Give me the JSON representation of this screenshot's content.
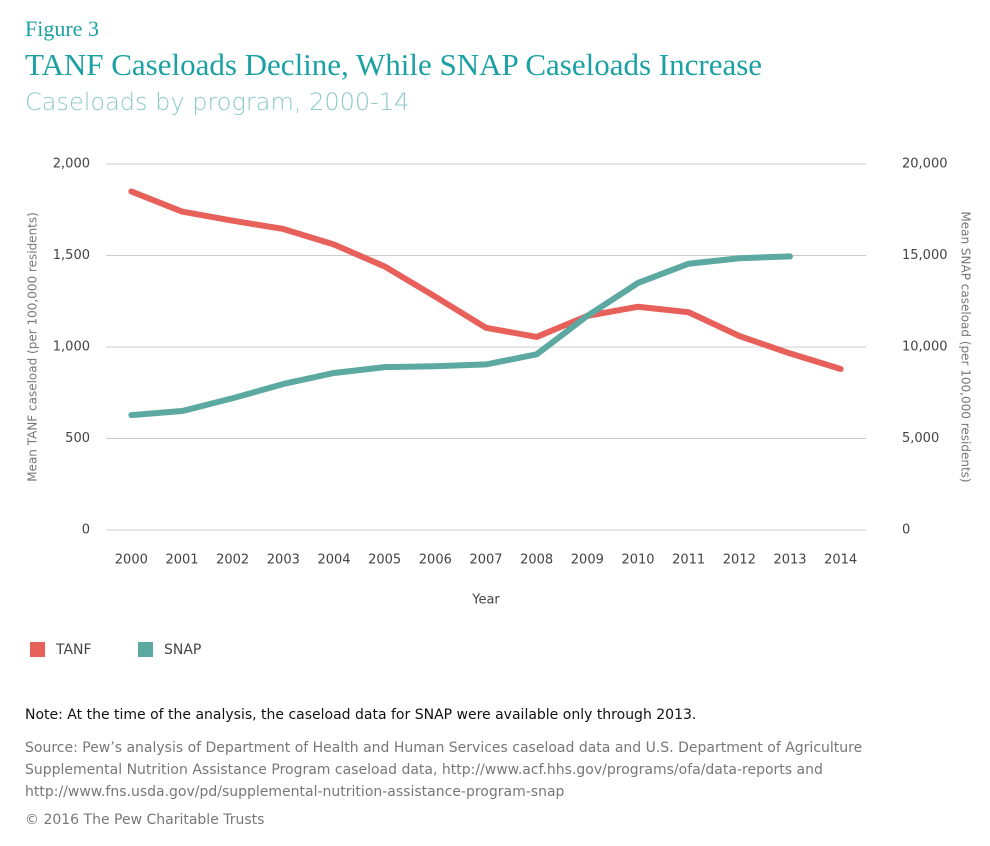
{
  "chart_data": {
    "type": "line",
    "label": "Figure 3",
    "title": "TANF Caseloads Decline, While SNAP Caseloads Increase",
    "subtitle": "Caseloads by program, 2000-14",
    "x_label": "Year",
    "y_label": "Mean TANF caseload (per 100,000 residents)",
    "y2_label": "Mean SNAP caseload (per 100,000 residents)",
    "categories": [
      "2000",
      "2001",
      "2002",
      "2003",
      "2004",
      "2005",
      "2006",
      "2007",
      "2008",
      "2009",
      "2010",
      "2011",
      "2012",
      "2013",
      "2014"
    ],
    "series": [
      {
        "name": "TANF",
        "color": "#e8605a",
        "values": [
          1850,
          1740,
          1690,
          1645,
          1560,
          1440,
          1275,
          1105,
          1055,
          1170,
          1220,
          1190,
          1060,
          965,
          880
        ]
      },
      {
        "name": "SNAP",
        "color": "#5ca9a1",
        "axis": "y2",
        "values": [
          6280,
          6500,
          7200,
          7980,
          8580,
          8900,
          8950,
          9050,
          9600,
          11700,
          13500,
          14550,
          14850,
          14950,
          null
        ]
      }
    ],
    "ylim": [
      0,
      2000
    ],
    "yticks": [
      0,
      500,
      {
        "value": 1000,
        "label": "1,000"
      },
      {
        "value": 1500,
        "label": "1,500"
      },
      {
        "value": 2000,
        "label": "2,000"
      }
    ],
    "y2lim": [
      0,
      20000
    ],
    "y2ticks": [
      0,
      {
        "value": 5000,
        "label": "5,000"
      },
      {
        "value": 10000,
        "label": "10,000"
      },
      {
        "value": 15000,
        "label": "15,000"
      },
      {
        "value": 20000,
        "label": "20,000"
      }
    ],
    "grid": true,
    "legend": "bottom-left",
    "note": "Note: At the time of the analysis, the caseload data for SNAP were available only through 2013.",
    "source": "Source: Pew’s analysis of Department of Health and Human Services caseload data and U.S. Department of Agriculture Supplemental Nutrition Assistance Program caseload data, http://www.acf.hhs.gov/programs/ofa/data-reports and http://www.fns.usda.gov/pd/supplemental-nutrition-assistance-program-snap",
    "copyright": "© 2016 The Pew Charitable Trusts"
  }
}
